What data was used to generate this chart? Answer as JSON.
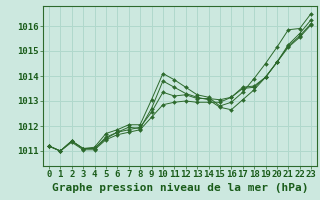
{
  "background_color": "#cce8df",
  "grid_color": "#b0d8cc",
  "line_color": "#2d6a2d",
  "marker_color": "#2d6a2d",
  "footer": "Graphe pression niveau de la mer (hPa)",
  "ylim": [
    1010.4,
    1016.8
  ],
  "xlim": [
    -0.5,
    23.5
  ],
  "yticks": [
    1011,
    1012,
    1013,
    1014,
    1015,
    1016
  ],
  "xticks": [
    0,
    1,
    2,
    3,
    4,
    5,
    6,
    7,
    8,
    9,
    10,
    11,
    12,
    13,
    14,
    15,
    16,
    17,
    18,
    19,
    20,
    21,
    22,
    23
  ],
  "series": [
    [
      1011.2,
      1011.0,
      1011.4,
      1011.1,
      1011.15,
      1011.7,
      1011.85,
      1012.05,
      1012.05,
      1013.05,
      1014.1,
      1013.85,
      1013.55,
      1013.25,
      1013.15,
      1012.8,
      1012.95,
      1013.35,
      1013.9,
      1014.5,
      1015.15,
      1015.85,
      1015.9,
      1016.5
    ],
    [
      1011.2,
      1011.0,
      1011.4,
      1011.1,
      1011.1,
      1011.55,
      1011.75,
      1011.95,
      1011.9,
      1012.7,
      1013.8,
      1013.55,
      1013.3,
      1013.15,
      1013.05,
      1012.75,
      1012.65,
      1013.05,
      1013.45,
      1013.95,
      1014.55,
      1015.25,
      1015.7,
      1016.25
    ],
    [
      1011.2,
      1011.0,
      1011.4,
      1011.1,
      1011.1,
      1011.5,
      1011.75,
      1011.85,
      1011.95,
      1012.55,
      1013.35,
      1013.2,
      1013.25,
      1013.1,
      1013.1,
      1013.05,
      1013.15,
      1013.5,
      1013.55,
      1013.95,
      1014.55,
      1015.2,
      1015.6,
      1016.1
    ],
    [
      1011.2,
      1011.0,
      1011.35,
      1011.05,
      1011.05,
      1011.45,
      1011.65,
      1011.75,
      1011.85,
      1012.35,
      1012.85,
      1012.95,
      1013.0,
      1012.95,
      1012.95,
      1012.95,
      1013.15,
      1013.55,
      1013.6,
      1013.95,
      1014.55,
      1015.15,
      1015.55,
      1016.05
    ]
  ],
  "title_fontsize": 8,
  "tick_fontsize": 6.5,
  "title_color": "#1a5c1a",
  "tick_color": "#1a5c1a",
  "spine_color": "#2d6a2d"
}
